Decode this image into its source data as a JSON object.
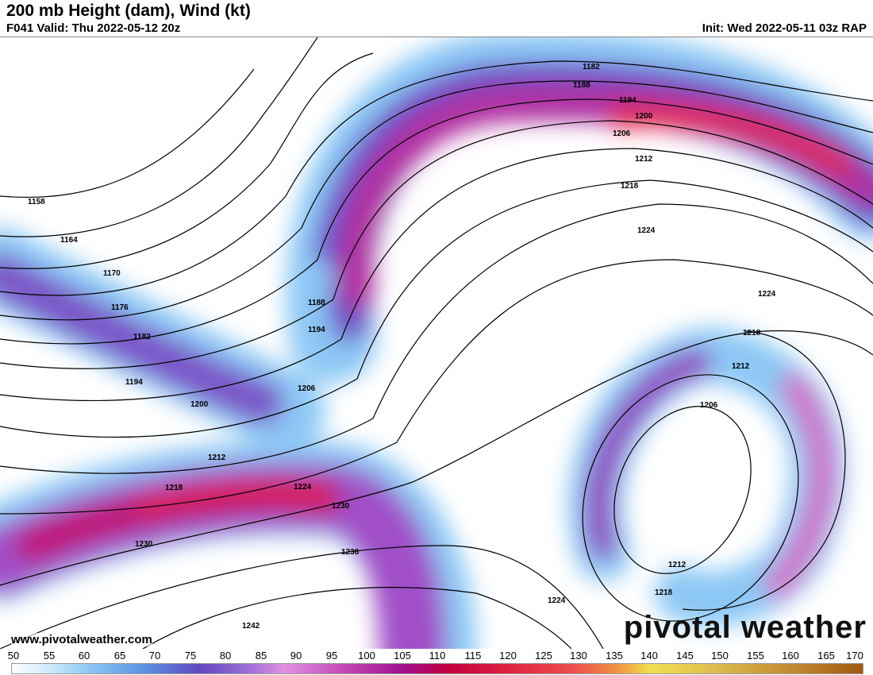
{
  "header": {
    "title": "200 mb Height (dam), Wind (kt)",
    "valid": "F041 Valid: Thu 2022-05-12 20z",
    "init": "Init: Wed 2022-05-11 03z RAP"
  },
  "footer": {
    "url": "www.pivotalweather.com",
    "logo": "pivotal weather"
  },
  "colorbar": {
    "unit": "kt",
    "labels": [
      "50",
      "55",
      "60",
      "65",
      "70",
      "75",
      "80",
      "85",
      "90",
      "95",
      "100",
      "105",
      "110",
      "115",
      "120",
      "125",
      "130",
      "135",
      "140",
      "145",
      "150",
      "155",
      "160",
      "165",
      "170"
    ]
  },
  "contours": {
    "labels": [
      "1158",
      "1164",
      "1170",
      "1176",
      "1182",
      "1194",
      "1200",
      "1212",
      "1218",
      "1230",
      "1242",
      "1188",
      "1194",
      "1206",
      "1224",
      "1230",
      "1236",
      "1182",
      "1188",
      "1194",
      "1200",
      "1206",
      "1212",
      "1218",
      "1224",
      "1224",
      "1218",
      "1212",
      "1206",
      "1212",
      "1218",
      "1224"
    ]
  }
}
